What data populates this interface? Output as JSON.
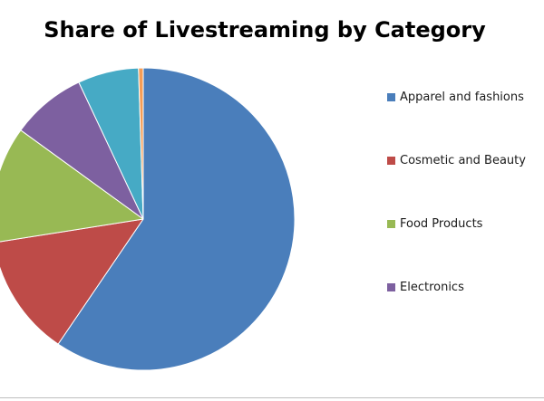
{
  "chart_data": {
    "type": "pie",
    "title": "Share of Livestreaming by Category",
    "start_angle_deg": 0,
    "direction": "clockwise",
    "slices": [
      {
        "label": "Apparel and fashions",
        "value": 59.5,
        "color": "#4a7ebb"
      },
      {
        "label": "Cosmetic and Beauty",
        "value": 13.0,
        "color": "#be4b48"
      },
      {
        "label": "Food Products",
        "value": 12.5,
        "color": "#98b954"
      },
      {
        "label": "Electronics",
        "value": 8.0,
        "color": "#7d60a0"
      },
      {
        "label": "",
        "value": 6.5,
        "color": "#46aac5"
      },
      {
        "label": "",
        "value": 0.5,
        "color": "#f59d56"
      }
    ],
    "legend": {
      "position": "right",
      "visible_entries": [
        "Apparel and fashions",
        "Cosmetic and Beauty",
        "Food Products",
        "Electronics"
      ]
    }
  }
}
